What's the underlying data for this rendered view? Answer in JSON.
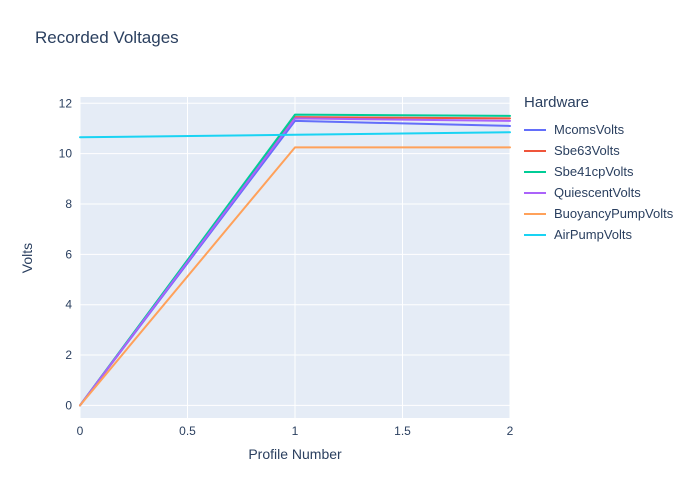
{
  "chart_data": {
    "type": "line",
    "title": "Recorded Voltages",
    "xlabel": "Profile Number",
    "ylabel": "Volts",
    "legend_title": "Hardware",
    "x": [
      0,
      1,
      2
    ],
    "series": [
      {
        "name": "McomsVolts",
        "color": "#636EFA",
        "values": [
          0,
          11.3,
          11.1
        ]
      },
      {
        "name": "Sbe63Volts",
        "color": "#EF553B",
        "values": [
          0,
          11.45,
          11.4
        ]
      },
      {
        "name": "Sbe41cpVolts",
        "color": "#00CC96",
        "values": [
          0,
          11.55,
          11.5
        ]
      },
      {
        "name": "QuiescentVolts",
        "color": "#AB63FA",
        "values": [
          0,
          11.4,
          11.3
        ]
      },
      {
        "name": "BuoyancyPumpVolts",
        "color": "#FFA15A",
        "values": [
          0,
          10.25,
          10.25
        ]
      },
      {
        "name": "AirPumpVolts",
        "color": "#19D3F3",
        "values": [
          10.65,
          10.75,
          10.85
        ]
      }
    ],
    "xticks": [
      0,
      0.5,
      1,
      1.5,
      2
    ],
    "yticks": [
      0,
      2,
      4,
      6,
      8,
      10,
      12
    ],
    "xlim": [
      0,
      2
    ],
    "ylim": [
      -0.5,
      12.25
    ],
    "grid": true,
    "legend_position": "right",
    "plot_bg": "#E5ECF6",
    "grid_color": "#FFFFFF",
    "text_color": "#2A3F5F"
  }
}
